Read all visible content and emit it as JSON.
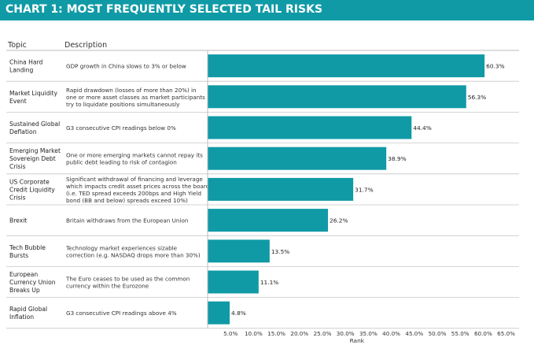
{
  "header": {
    "title": "CHART 1: MOST FREQUENTLY SELECTED TAIL RISKS",
    "topic_col": "Topic",
    "desc_col": "Description"
  },
  "chart_data": {
    "type": "bar",
    "orientation": "horizontal",
    "title": "CHART 1: MOST FREQUENTLY SELECTED TAIL RISKS",
    "xlabel": "Rank",
    "xlim": [
      0,
      65
    ],
    "xticks": [
      "5.0%",
      "10.0%",
      "15.0%",
      "20.0%",
      "25.0%",
      "30.0%",
      "35.0%",
      "40.0%",
      "45.0%",
      "50.0%",
      "55.0%",
      "60.0%",
      "65.0%"
    ],
    "bar_color": "#0f9aa6",
    "rows": [
      {
        "topic": [
          "China Hard",
          "Landing"
        ],
        "description": [
          "GDP growth in China slows to 3% or below"
        ],
        "value": 60.3,
        "label": "60.3%"
      },
      {
        "topic": [
          "Market Liquidity",
          "Event"
        ],
        "description": [
          "Rapid drawdown (losses of more than 20%) in",
          "one or more asset classes as market participants",
          "try to liquidate positions simultaneously"
        ],
        "value": 56.3,
        "label": "56.3%"
      },
      {
        "topic": [
          "Sustained Global",
          "Deflation"
        ],
        "description": [
          "G3 consecutive CPI readings below 0%"
        ],
        "value": 44.4,
        "label": "44.4%"
      },
      {
        "topic": [
          "Emerging Market",
          "Sovereign Debt",
          "Crisis"
        ],
        "description": [
          "One or more emerging markets cannot repay its",
          "public debt leading to risk of contagion"
        ],
        "value": 38.9,
        "label": "38.9%"
      },
      {
        "topic": [
          "US Corporate",
          "Credit Liquidity",
          "Crisis"
        ],
        "description": [
          "Significant withdrawal of financing and leverage",
          "which impacts credit asset prices across the board",
          "(i.e. TED spread exceeds 200bps and High Yield",
          "bond (BB and below) spreads exceed 10%)"
        ],
        "value": 31.7,
        "label": "31.7%"
      },
      {
        "topic": [
          "Brexit"
        ],
        "description": [
          "Britain withdraws from the European Union"
        ],
        "value": 26.2,
        "label": "26.2%"
      },
      {
        "topic": [
          "Tech Bubble",
          "Bursts"
        ],
        "description": [
          "Technology market experiences sizable",
          "correction (e.g. NASDAQ drops more than 30%)"
        ],
        "value": 13.5,
        "label": "13.5%"
      },
      {
        "topic": [
          "European",
          "Currency Union",
          "Breaks Up"
        ],
        "description": [
          "The Euro ceases to be used as the common",
          "currency within the Eurozone"
        ],
        "value": 11.1,
        "label": "11.1%"
      },
      {
        "topic": [
          "Rapid Global",
          "Inflation"
        ],
        "description": [
          "G3 consecutive CPI readings above 4%"
        ],
        "value": 4.8,
        "label": "4.8%"
      }
    ]
  }
}
